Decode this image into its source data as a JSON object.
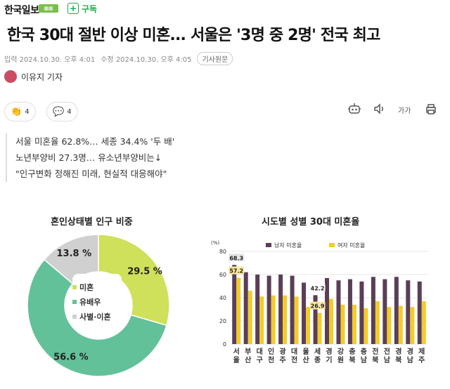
{
  "header": {
    "brand": "한국일보",
    "subscribe_label": "구독"
  },
  "article": {
    "headline": "한국 30대 절반 이상 미혼... 서울은 '3명 중 2명' 전국 최고",
    "input_date": "입력 2024.10.30. 오후 4:01",
    "modified_date": "수정 2024.10.30. 오후 4:05",
    "original_label": "기사원문",
    "reporter": "이유지 기자",
    "reactions_count": "4",
    "comments_count": "4",
    "font_size_label": "가가",
    "summary": [
      "서울 미혼율 62.8%… 세종 34.4% '두 배'",
      "노년부양비 27.3명… 유소년부양비는↓",
      "\"인구변화 정해진 미래, 현실적 대응해야\""
    ]
  },
  "colors": {
    "unmarried": "#cfe05a",
    "married": "#63c19a",
    "divorced": "#d0d0d0",
    "male_bar": "#5a3e57",
    "female_bar": "#f2cc2a",
    "accent_green": "#1fa84c"
  },
  "chart_data": [
    {
      "type": "pie",
      "title": "혼인상태별 인구 비중",
      "labels": [
        "미혼",
        "유배우",
        "사별·이혼"
      ],
      "values": [
        29.5,
        56.6,
        13.8
      ],
      "value_labels": [
        "29.5 %",
        "56.6 %",
        "13.8 %"
      ]
    },
    {
      "type": "bar",
      "title": "시도별 성별 30대 미혼율",
      "ylabel": "(%)",
      "ylim": [
        0,
        80
      ],
      "yticks": [
        "0",
        "20",
        "40",
        "60",
        "80"
      ],
      "categories": [
        "서울",
        "부산",
        "대구",
        "인천",
        "광주",
        "대전",
        "울산",
        "세종",
        "경기",
        "강원",
        "충북",
        "충남",
        "전북",
        "전남",
        "경북",
        "경남",
        "제주"
      ],
      "series": [
        {
          "name": "남자 미혼율",
          "values": [
            68.3,
            62,
            60,
            59,
            60,
            59,
            53,
            42.2,
            57,
            55,
            56,
            54,
            58,
            56,
            58,
            55,
            54
          ]
        },
        {
          "name": "여자 미혼율",
          "values": [
            57.2,
            46,
            41,
            42,
            42,
            41,
            32,
            26.9,
            39,
            34,
            34,
            31,
            37,
            32,
            33,
            32,
            37
          ]
        }
      ],
      "data_labels": [
        "68.3",
        "57.2",
        "42.2",
        "26.9"
      ]
    }
  ]
}
